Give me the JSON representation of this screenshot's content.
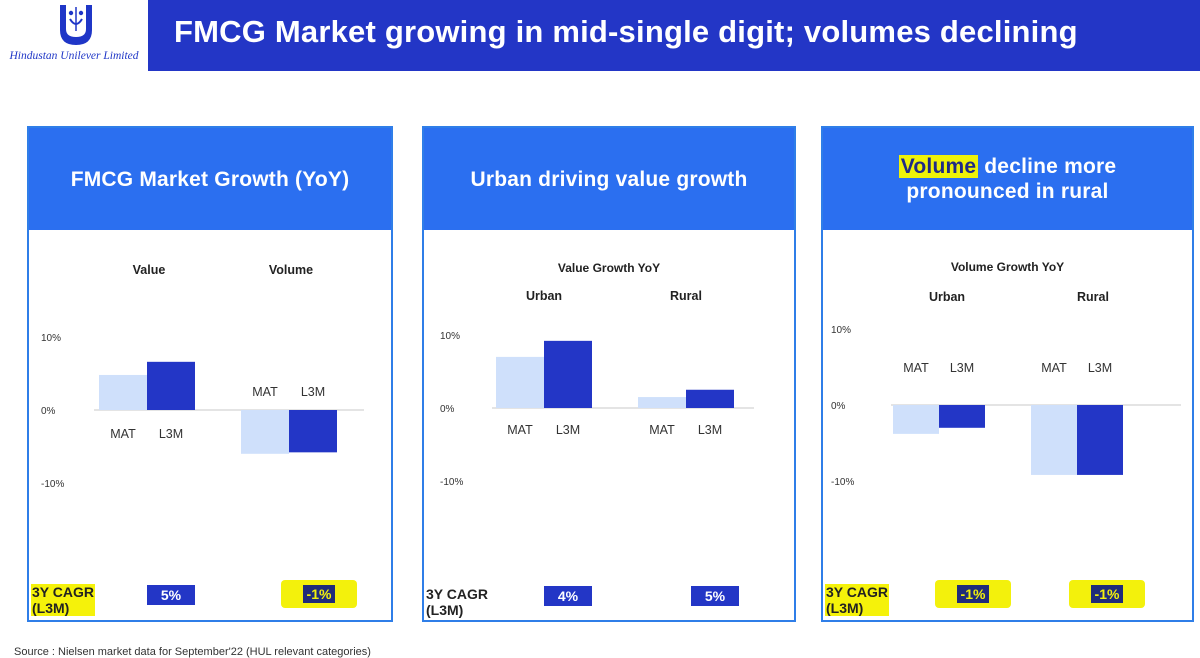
{
  "header": {
    "logo_text": "Hindustan Unilever Limited",
    "title": "FMCG Market growing in mid-single digit; volumes declining"
  },
  "panels": [
    {
      "title": "FMCG Market Growth (YoY)"
    },
    {
      "title": "Urban driving value growth"
    },
    {
      "title_highlight": "Volume",
      "title_rest_line1": " decline more",
      "title_line2": "pronounced in rural"
    }
  ],
  "chart_data": [
    {
      "type": "bar",
      "title": "FMCG Market Growth (YoY)",
      "groups": [
        "Value",
        "Volume"
      ],
      "categories": [
        "MAT",
        "L3M"
      ],
      "series": [
        {
          "name": "MAT",
          "color": "#cfe0fb",
          "values": [
            4.8,
            -6.0
          ]
        },
        {
          "name": "L3M",
          "color": "#2336c6",
          "values": [
            6.6,
            -5.8
          ]
        }
      ],
      "ylim": [
        -10,
        10
      ],
      "ticks": [
        "10%",
        "0%",
        "-10%"
      ],
      "cagr": {
        "label_line1": "3Y CAGR",
        "label_line2": "(L3M)",
        "values": [
          "5%",
          "-1%"
        ]
      }
    },
    {
      "type": "bar",
      "title": "Urban driving value growth",
      "subtitle": "Value Growth YoY",
      "groups": [
        "Urban",
        "Rural"
      ],
      "categories": [
        "MAT",
        "L3M"
      ],
      "series": [
        {
          "name": "MAT",
          "color": "#cfe0fb",
          "values": [
            7.0,
            1.5
          ]
        },
        {
          "name": "L3M",
          "color": "#2336c6",
          "values": [
            9.2,
            2.5
          ]
        }
      ],
      "ylim": [
        -10,
        10
      ],
      "ticks": [
        "10%",
        "0%",
        "-10%"
      ],
      "cagr": {
        "label_line1": "3Y CAGR",
        "label_line2": "(L3M)",
        "values": [
          "4%",
          "5%"
        ]
      }
    },
    {
      "type": "bar",
      "title": "Volume decline more pronounced in rural",
      "subtitle": "Volume Growth YoY",
      "groups": [
        "Urban",
        "Rural"
      ],
      "categories": [
        "MAT",
        "L3M"
      ],
      "series": [
        {
          "name": "MAT",
          "color": "#cfe0fb",
          "values": [
            -3.8,
            -9.2
          ]
        },
        {
          "name": "L3M",
          "color": "#2336c6",
          "values": [
            -3.0,
            -9.2
          ]
        }
      ],
      "ylim": [
        -10,
        10
      ],
      "ticks": [
        "10%",
        "0%",
        "-10%"
      ],
      "cagr": {
        "label_line1": "3Y CAGR",
        "label_line2": "(L3M)",
        "values": [
          "-1%",
          "-1%"
        ]
      }
    }
  ],
  "source": "Source :  Nielsen market data for September'22  (HUL relevant categories)"
}
